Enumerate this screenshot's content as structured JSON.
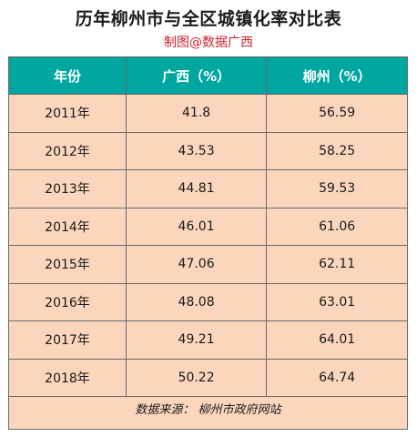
{
  "chart_data": {
    "type": "table",
    "title": "历年柳州市与全区城镇化率对比表",
    "subtitle": "制图@数据广西",
    "columns": [
      "年份",
      "广西（%）",
      "柳州（%）"
    ],
    "rows": [
      [
        "2011年",
        "41.8",
        "56.59"
      ],
      [
        "2012年",
        "43.53",
        "58.25"
      ],
      [
        "2013年",
        "44.81",
        "59.53"
      ],
      [
        "2014年",
        "46.01",
        "61.06"
      ],
      [
        "2015年",
        "47.06",
        "62.11"
      ],
      [
        "2016年",
        "48.08",
        "63.01"
      ],
      [
        "2017年",
        "49.21",
        "64.01"
      ],
      [
        "2018年",
        "50.22",
        "64.74"
      ]
    ],
    "source": "数据来源： 柳州市政府网站"
  },
  "colors": {
    "header_bg": "#00a6a0",
    "row_bg": "#fbd6bd",
    "subtitle": "#d0202a"
  }
}
